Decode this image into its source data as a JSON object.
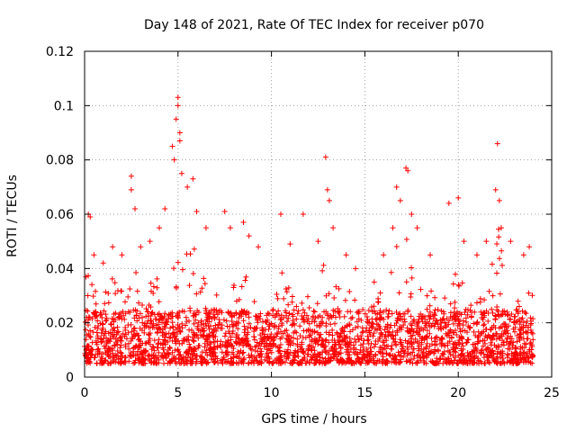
{
  "chart_data": {
    "type": "scatter",
    "title": "Day 148 of 2021, Rate Of TEC Index for receiver p070",
    "xlabel": "GPS time / hours",
    "ylabel": "ROTI / TECUs",
    "xlim": [
      0,
      25
    ],
    "ylim": [
      0,
      0.12
    ],
    "xticks": [
      0,
      5,
      10,
      15,
      20,
      25
    ],
    "xtick_labels": [
      "0",
      "5",
      "10",
      "15",
      "20",
      "25"
    ],
    "yticks": [
      0,
      0.02,
      0.04,
      0.06,
      0.08,
      0.1,
      0.12
    ],
    "ytick_labels": [
      "0",
      "0.02",
      "0.04",
      "0.06",
      "0.08",
      "0.1",
      "0.12"
    ],
    "grid": true,
    "marker": "+",
    "color": "#ff0000",
    "data_range_x": [
      0,
      24
    ],
    "baseline_band": [
      0.005,
      0.025
    ],
    "series": [
      {
        "name": "ROTI",
        "points": [
          [
            0.2,
            0.06
          ],
          [
            0.3,
            0.059
          ],
          [
            0.5,
            0.045
          ],
          [
            1.0,
            0.042
          ],
          [
            1.5,
            0.048
          ],
          [
            2.0,
            0.045
          ],
          [
            2.5,
            0.074
          ],
          [
            2.5,
            0.069
          ],
          [
            2.7,
            0.062
          ],
          [
            3.0,
            0.048
          ],
          [
            3.5,
            0.05
          ],
          [
            4.0,
            0.055
          ],
          [
            4.3,
            0.062
          ],
          [
            4.7,
            0.085
          ],
          [
            4.8,
            0.08
          ],
          [
            4.9,
            0.095
          ],
          [
            5.0,
            0.103
          ],
          [
            5.0,
            0.1
          ],
          [
            5.1,
            0.09
          ],
          [
            5.1,
            0.087
          ],
          [
            5.2,
            0.075
          ],
          [
            5.5,
            0.07
          ],
          [
            5.8,
            0.073
          ],
          [
            6.0,
            0.061
          ],
          [
            6.5,
            0.055
          ],
          [
            7.5,
            0.061
          ],
          [
            7.8,
            0.055
          ],
          [
            8.5,
            0.057
          ],
          [
            8.8,
            0.052
          ],
          [
            9.3,
            0.048
          ],
          [
            10.5,
            0.06
          ],
          [
            11.0,
            0.049
          ],
          [
            11.7,
            0.06
          ],
          [
            12.5,
            0.05
          ],
          [
            12.9,
            0.081
          ],
          [
            13.0,
            0.069
          ],
          [
            13.1,
            0.065
          ],
          [
            13.3,
            0.055
          ],
          [
            14.0,
            0.045
          ],
          [
            14.5,
            0.04
          ],
          [
            15.5,
            0.035
          ],
          [
            16.0,
            0.045
          ],
          [
            16.5,
            0.055
          ],
          [
            16.7,
            0.07
          ],
          [
            16.9,
            0.065
          ],
          [
            17.2,
            0.077
          ],
          [
            17.3,
            0.076
          ],
          [
            17.5,
            0.06
          ],
          [
            17.8,
            0.055
          ],
          [
            18.5,
            0.045
          ],
          [
            19.5,
            0.064
          ],
          [
            20.0,
            0.066
          ],
          [
            20.3,
            0.05
          ],
          [
            21.0,
            0.045
          ],
          [
            21.5,
            0.05
          ],
          [
            22.0,
            0.069
          ],
          [
            22.1,
            0.086
          ],
          [
            22.2,
            0.065
          ],
          [
            22.3,
            0.055
          ],
          [
            22.8,
            0.05
          ],
          [
            23.5,
            0.045
          ],
          [
            23.8,
            0.048
          ]
        ]
      }
    ]
  }
}
